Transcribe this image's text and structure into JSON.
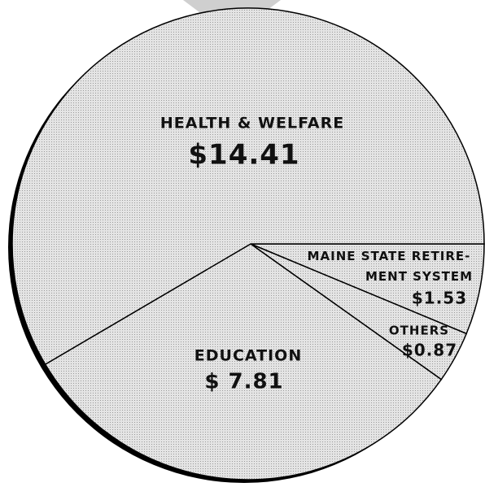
{
  "chart_data": {
    "type": "pie",
    "categories": [
      "MAINE STATE RETIRE-MENT SYSTEM",
      "OTHERS",
      "EDUCATION",
      "HEALTH & WELFARE"
    ],
    "values": [
      1.53,
      0.87,
      7.81,
      14.41
    ],
    "value_labels": [
      "$1.53",
      "$0.87",
      "$ 7.81",
      "$14.41"
    ],
    "color": "#d9d9d9"
  }
}
